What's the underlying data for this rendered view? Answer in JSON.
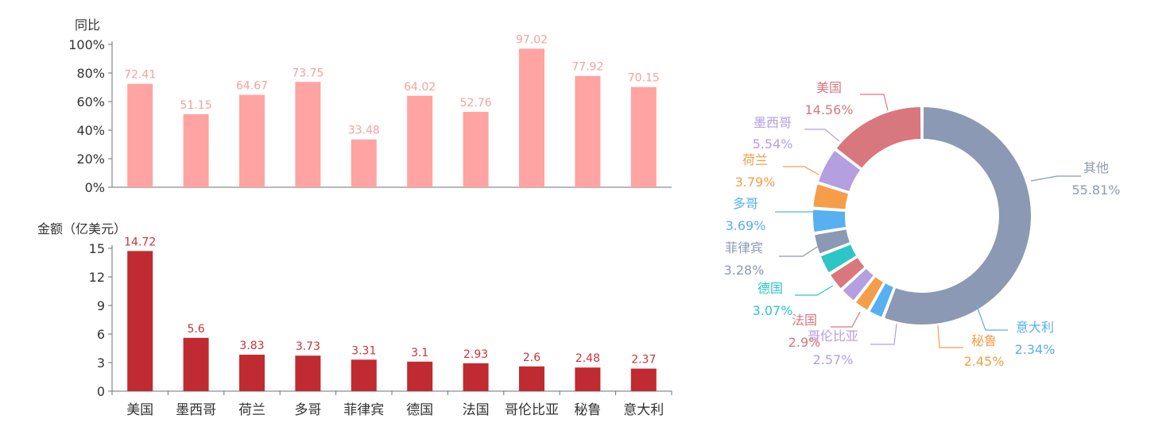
{
  "chart_data": [
    {
      "type": "bar",
      "ylabel": "同比",
      "yticks": [
        "0%",
        "20%",
        "40%",
        "60%",
        "80%",
        "100%"
      ],
      "ylim": [
        0,
        100
      ],
      "categories": [
        "美国",
        "墨西哥",
        "荷兰",
        "多哥",
        "菲律宾",
        "德国",
        "法国",
        "哥伦比亚",
        "秘鲁",
        "意大利"
      ],
      "values": [
        72.41,
        51.15,
        64.67,
        73.75,
        33.48,
        64.02,
        52.76,
        97.02,
        77.92,
        70.15
      ],
      "value_labels": [
        "72.41",
        "51.15",
        "64.67",
        "73.75",
        "33.48",
        "64.02",
        "52.76",
        "97.02",
        "77.92",
        "70.15"
      ],
      "color": "#ffa3a3",
      "label_color": "#f7a0a0"
    },
    {
      "type": "bar",
      "ylabel": "金额（亿美元）",
      "yticks": [
        "0",
        "3",
        "6",
        "9",
        "12",
        "15"
      ],
      "ylim": [
        0,
        15
      ],
      "categories": [
        "美国",
        "墨西哥",
        "荷兰",
        "多哥",
        "菲律宾",
        "德国",
        "法国",
        "哥伦比亚",
        "秘鲁",
        "意大利"
      ],
      "values": [
        14.72,
        5.6,
        3.83,
        3.73,
        3.31,
        3.1,
        2.93,
        2.6,
        2.48,
        2.37
      ],
      "value_labels": [
        "14.72",
        "5.6",
        "3.83",
        "3.73",
        "3.31",
        "3.1",
        "2.93",
        "2.6",
        "2.48",
        "2.37"
      ],
      "color": "#bf2b31",
      "label_color": "#c6363c"
    },
    {
      "type": "pie",
      "donut": true,
      "slices": [
        {
          "name": "其他",
          "value": 55.81,
          "label": "55.81%",
          "color": "#8c99b4"
        },
        {
          "name": "意大利",
          "value": 2.34,
          "label": "2.34%",
          "color": "#57b0ef"
        },
        {
          "name": "秘鲁",
          "value": 2.45,
          "label": "2.45%",
          "color": "#f59d49"
        },
        {
          "name": "哥伦比亚",
          "value": 2.57,
          "label": "2.57%",
          "color": "#b49fe0"
        },
        {
          "name": "法国",
          "value": 2.9,
          "label": "2.9%",
          "color": "#d8777d"
        },
        {
          "name": "德国",
          "value": 3.07,
          "label": "3.07%",
          "color": "#2ec5c6"
        },
        {
          "name": "菲律宾",
          "value": 3.28,
          "label": "3.28%",
          "color": "#8c99b4"
        },
        {
          "name": "多哥",
          "value": 3.69,
          "label": "3.69%",
          "color": "#57b0ef"
        },
        {
          "name": "荷兰",
          "value": 3.79,
          "label": "3.79%",
          "color": "#f59d49"
        },
        {
          "name": "墨西哥",
          "value": 5.54,
          "label": "5.54%",
          "color": "#b49fe0"
        },
        {
          "name": "美国",
          "value": 14.56,
          "label": "14.56%",
          "color": "#d8777d"
        }
      ]
    }
  ]
}
